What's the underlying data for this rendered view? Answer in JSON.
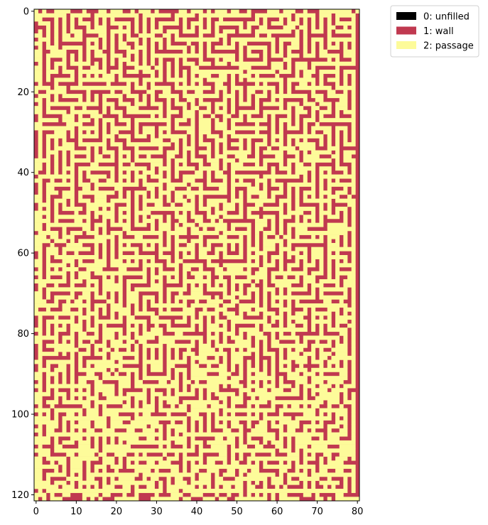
{
  "chart_data": {
    "type": "heatmap",
    "title": "",
    "xlabel": "",
    "ylabel": "",
    "grid": false,
    "rows": 122,
    "cols": 81,
    "x_range": [
      -0.5,
      80.5
    ],
    "y_range": [
      121.5,
      -0.5
    ],
    "y_axis_inverted": true,
    "x_ticks": [
      0,
      10,
      20,
      30,
      40,
      50,
      60,
      70,
      80
    ],
    "y_ticks": [
      0,
      20,
      40,
      60,
      80,
      100,
      120
    ],
    "legend_placement": "outside top-right",
    "categories": [
      {
        "value": 0,
        "label": "0: unfilled",
        "color": "#000000"
      },
      {
        "value": 1,
        "label": "1: wall",
        "color": "#c03950"
      },
      {
        "value": 2,
        "label": "2: passage",
        "color": "#fdfb9a"
      }
    ],
    "border_value": 1,
    "wall_fraction_approx": 0.5,
    "grid_data_note": "Maze cell values are not individually legible; approximated procedurally."
  }
}
